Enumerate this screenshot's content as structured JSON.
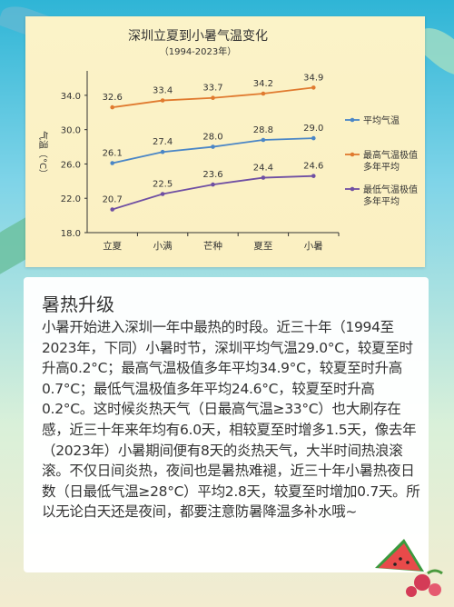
{
  "colors": {
    "avg": "#4a86c6",
    "max": "#e07a2f",
    "min": "#6f4fa3"
  },
  "chart_data": {
    "type": "line",
    "title": "深圳立夏到小暑气温变化",
    "subtitle": "（1994-2023年）",
    "ylabel": "气温（°C）",
    "categories": [
      "立夏",
      "小满",
      "芒种",
      "夏至",
      "小暑"
    ],
    "yticks": [
      "34.0",
      "30.0",
      "26.0",
      "22.0",
      "18.0"
    ],
    "ylim": [
      18,
      36
    ],
    "grid": false,
    "legend_placement": "right",
    "series": [
      {
        "name": "平均气温",
        "legend_lines": [
          "平均气温"
        ],
        "color_key": "avg",
        "values": [
          26.1,
          27.4,
          28.0,
          28.8,
          29.0
        ],
        "labels": [
          "26.1",
          "27.4",
          "28.0",
          "28.8",
          "29.0"
        ]
      },
      {
        "name": "最高气温极值多年平均",
        "legend_lines": [
          "最高气温极值",
          "多年平均"
        ],
        "color_key": "max",
        "values": [
          32.6,
          33.4,
          33.7,
          34.2,
          34.9
        ],
        "labels": [
          "32.6",
          "33.4",
          "33.7",
          "34.2",
          "34.9"
        ]
      },
      {
        "name": "最低气温极值多年平均",
        "legend_lines": [
          "最低气温极值",
          "多年平均"
        ],
        "color_key": "min",
        "values": [
          20.7,
          22.5,
          23.6,
          24.4,
          24.6
        ],
        "labels": [
          "20.7",
          "22.5",
          "23.6",
          "24.4",
          "24.6"
        ]
      }
    ]
  },
  "article": {
    "title": "暑热升级",
    "body": "小暑开始进入深圳一年中最热的时段。近三十年（1994至2023年，下同）小暑时节，深圳平均气温29.0°C，较夏至时升高0.2°C；最高气温极值多年平均34.9°C，较夏至时升高0.7°C；最低气温极值多年平均24.6°C，较夏至时升高0.2°C。这时候炎热天气（日最高气温≥33°C）也大刷存在感，近三十年来年均有6.0天，相较夏至时增多1.5天，像去年（2023年）小暑期间便有8天的炎热天气，大半时间热浪滚滚。不仅日间炎热，夜间也是暑热难褪，近三十年小暑热夜日数（日最低气温≥28°C）平均2.8天，较夏至时增加0.7天。所以无论白天还是夜间，都要注意防暑降温多补水哦~"
  }
}
